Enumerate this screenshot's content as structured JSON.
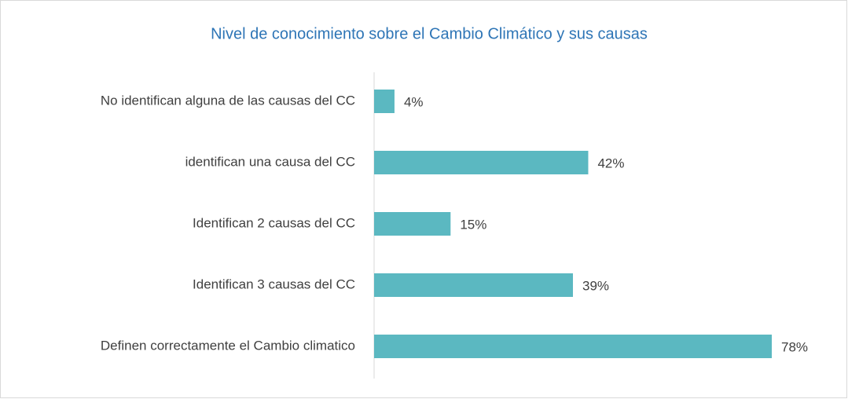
{
  "chart_data": {
    "type": "bar",
    "orientation": "horizontal",
    "title": "Nivel de conocimiento  sobre el Cambio Climático y sus causas",
    "categories": [
      "No identifican alguna de las  causas del CC",
      "identifican una causa del CC",
      "Identifican 2 causas del CC",
      "Identifican 3 causas del CC",
      "Definen correctamente  el Cambio climatico"
    ],
    "values": [
      4,
      42,
      15,
      39,
      78
    ],
    "value_labels": [
      "4%",
      "42%",
      "15%",
      "39%",
      "78%"
    ],
    "color": "#5bb8c1",
    "xlim": [
      0,
      80
    ]
  }
}
